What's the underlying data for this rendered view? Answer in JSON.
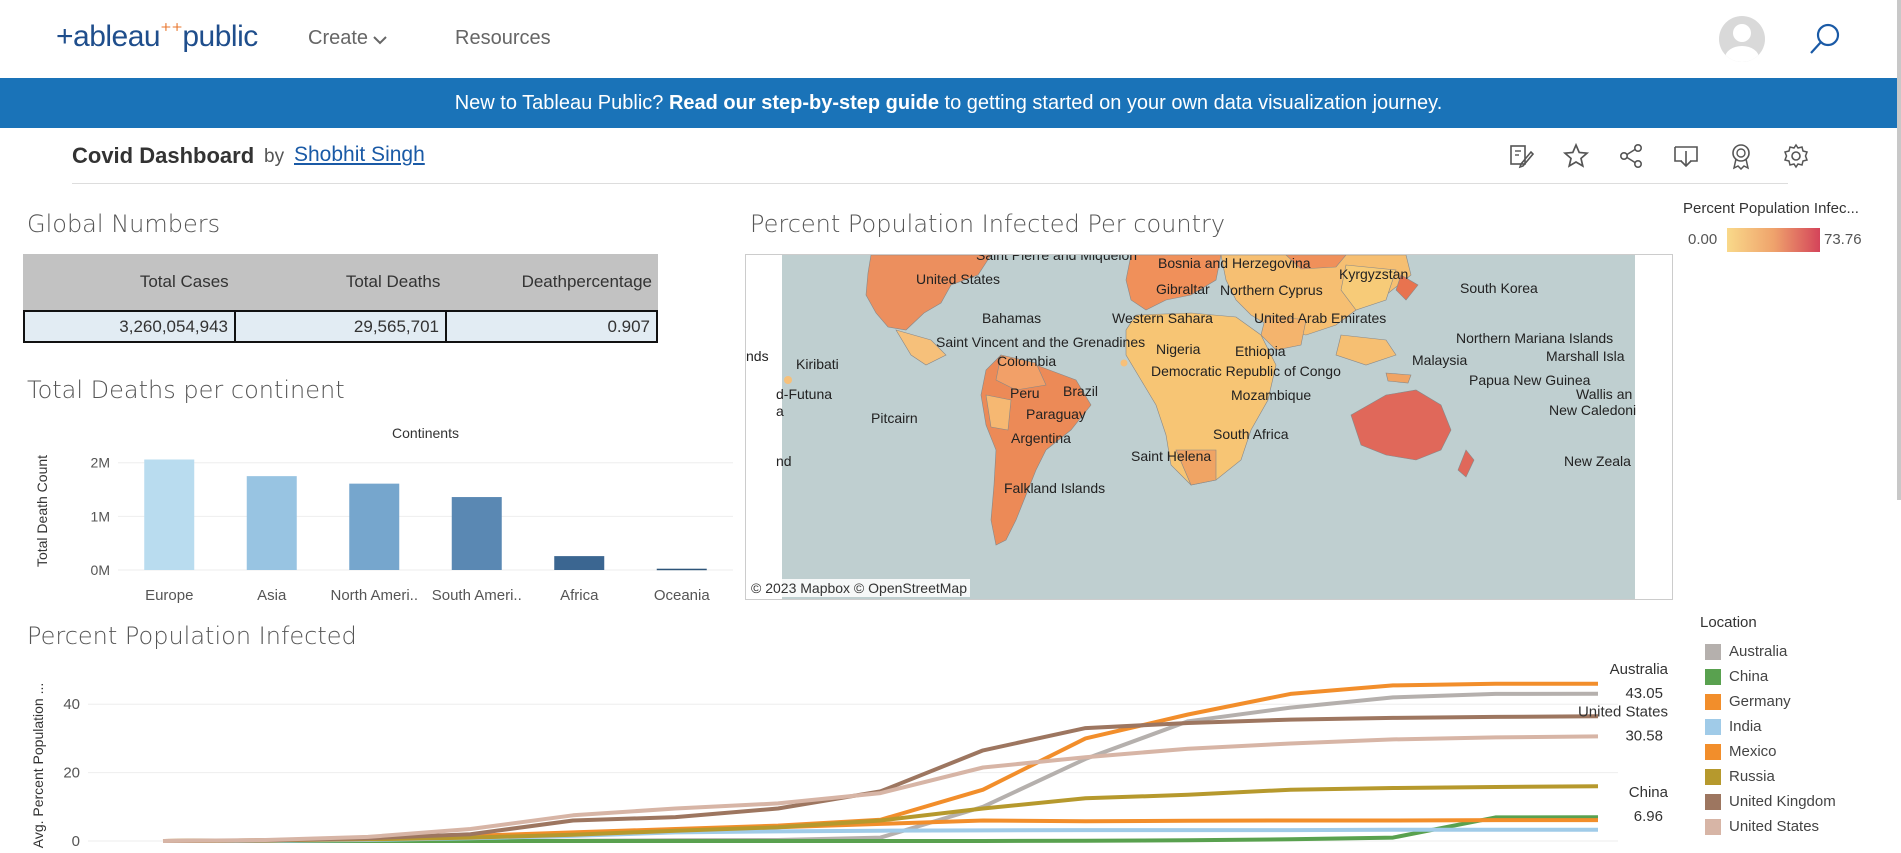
{
  "nav": {
    "logo_left": "+ableau",
    "logo_right": "public",
    "create_label": "Create",
    "resources_label": "Resources"
  },
  "banner": {
    "prefix": "New to Tableau Public? ",
    "link": "Read our step-by-step guide",
    "suffix": " to getting started on your own data visualization journey."
  },
  "viz": {
    "title": "Covid Dashboard",
    "by": "by",
    "author": "Shobhit Singh"
  },
  "global_numbers": {
    "title": "Global Numbers",
    "headers": [
      "Total Cases",
      "Total Deaths",
      "Deathpercentage"
    ],
    "values": [
      "3,260,054,943",
      "29,565,701",
      "0.907"
    ]
  },
  "deaths_section": {
    "title": "Total Deaths per continent"
  },
  "map_section": {
    "title": "Percent Population Infected Per country",
    "credit": "© 2023 Mapbox  © OpenStreetMap"
  },
  "map_legend": {
    "title": "Percent Population Infec...",
    "min": "0.00",
    "max": "73.76"
  },
  "map_labels": [
    "Saint Pierre and Miquelon",
    "Bosnia and Herzegovina",
    "Kyrgyzstan",
    "United States",
    "Gibraltar",
    "Northern Cyprus",
    "South Korea",
    "Bahamas",
    "Western Sahara",
    "United Arab Emirates",
    "Northern Mariana Islands",
    "Saint Vincent and the Grenadines",
    "Nigeria",
    "Ethiopia",
    "Marshall Isla",
    "nds",
    "Kiribati",
    "Colombia",
    "Malaysia",
    "Democratic Republic of Congo",
    "Papua New Guinea",
    "d-Futuna",
    "Peru",
    "Brazil",
    "Mozambique",
    "Wallis an",
    "a",
    "Paraguay",
    "New Caledoni",
    "Pitcairn",
    "Argentina",
    "South Africa",
    "Saint Helena",
    "nd",
    "New Zeala",
    "Falkland Islands"
  ],
  "infected_section": {
    "title": "Percent Population Infected"
  },
  "location_legend": {
    "title": "Location",
    "items": [
      "Australia",
      "China",
      "Germany",
      "India",
      "Mexico",
      "Russia",
      "United Kingdom",
      "United States"
    ]
  },
  "chart_data": [
    {
      "type": "bar",
      "title": "Continents",
      "xlabel": "",
      "ylabel": "Total Death Count",
      "categories": [
        "Europe",
        "Asia",
        "North Ameri..",
        "South Ameri..",
        "Africa",
        "Oceania"
      ],
      "values": [
        2060000,
        1750000,
        1610000,
        1360000,
        259000,
        24000
      ],
      "ylim": [
        0,
        2200000
      ],
      "yticks": [
        0,
        1000000,
        2000000
      ],
      "ytick_labels": [
        "0M",
        "1M",
        "2M"
      ],
      "colors": [
        "#b9dcef",
        "#98c4e2",
        "#76a6cd",
        "#5a88b3",
        "#3b6691",
        "#2e5479"
      ],
      "grid": true
    },
    {
      "type": "line",
      "ylabel": "Avg. Percent Population ...",
      "x": [
        1,
        2,
        3,
        4,
        5,
        6,
        7,
        8,
        9,
        10,
        11,
        12,
        13,
        14,
        15
      ],
      "ylim": [
        0,
        50
      ],
      "yticks": [
        0,
        20,
        40
      ],
      "grid": true,
      "series": [
        {
          "name": "Australia",
          "color": "#b5b0ad",
          "values": [
            0,
            0.1,
            0.1,
            0.1,
            0.1,
            0.2,
            0.3,
            1.0,
            10,
            24,
            35,
            39,
            42,
            43,
            43.05
          ]
        },
        {
          "name": "China",
          "color": "#59a14f",
          "values": [
            0,
            0,
            0,
            0,
            0,
            0,
            0,
            0,
            0,
            0.1,
            0.2,
            0.5,
            1,
            6.9,
            6.96
          ]
        },
        {
          "name": "Germany",
          "color": "#f28e2b",
          "values": [
            0,
            0.1,
            0.4,
            1.2,
            2.2,
            3,
            4,
            5,
            6,
            5.8,
            5.9,
            6,
            6,
            6.1,
            6.1
          ]
        },
        {
          "name": "India",
          "color": "#a0cbe8",
          "values": [
            0,
            0.1,
            0.3,
            0.8,
            1.5,
            2.5,
            2.8,
            3,
            3.1,
            3.2,
            3.2,
            3.2,
            3.3,
            3.3,
            3.3
          ]
        },
        {
          "name": "Mexico",
          "color": "#f28e2b",
          "values": [
            0,
            0.2,
            0.6,
            1.5,
            2.5,
            3.5,
            4.5,
            6.2,
            15,
            30,
            37,
            43,
            45.5,
            46,
            46
          ]
        },
        {
          "name": "Russia",
          "color": "#b6992d",
          "values": [
            0,
            0.2,
            0.5,
            1,
            1.8,
            3,
            4,
            6,
            9.5,
            12.5,
            13.5,
            15,
            15.5,
            15.8,
            16
          ]
        },
        {
          "name": "United Kingdom",
          "color": "#9d7660",
          "values": [
            0,
            0.2,
            0.8,
            2,
            6,
            7,
            9.5,
            14.5,
            26.5,
            33,
            34.5,
            35.5,
            36,
            36.3,
            36.5
          ]
        },
        {
          "name": "United States",
          "color": "#d7b5a6",
          "values": [
            0,
            0.3,
            1.2,
            3.5,
            7.5,
            9.5,
            11,
            14,
            21.5,
            24.5,
            27,
            28.5,
            29.7,
            30.3,
            30.58
          ]
        }
      ],
      "annotations": [
        {
          "label": "Australia",
          "value": "43.05"
        },
        {
          "label": "United States",
          "value": "30.58"
        },
        {
          "label": "China",
          "value": "6.96"
        }
      ]
    }
  ]
}
